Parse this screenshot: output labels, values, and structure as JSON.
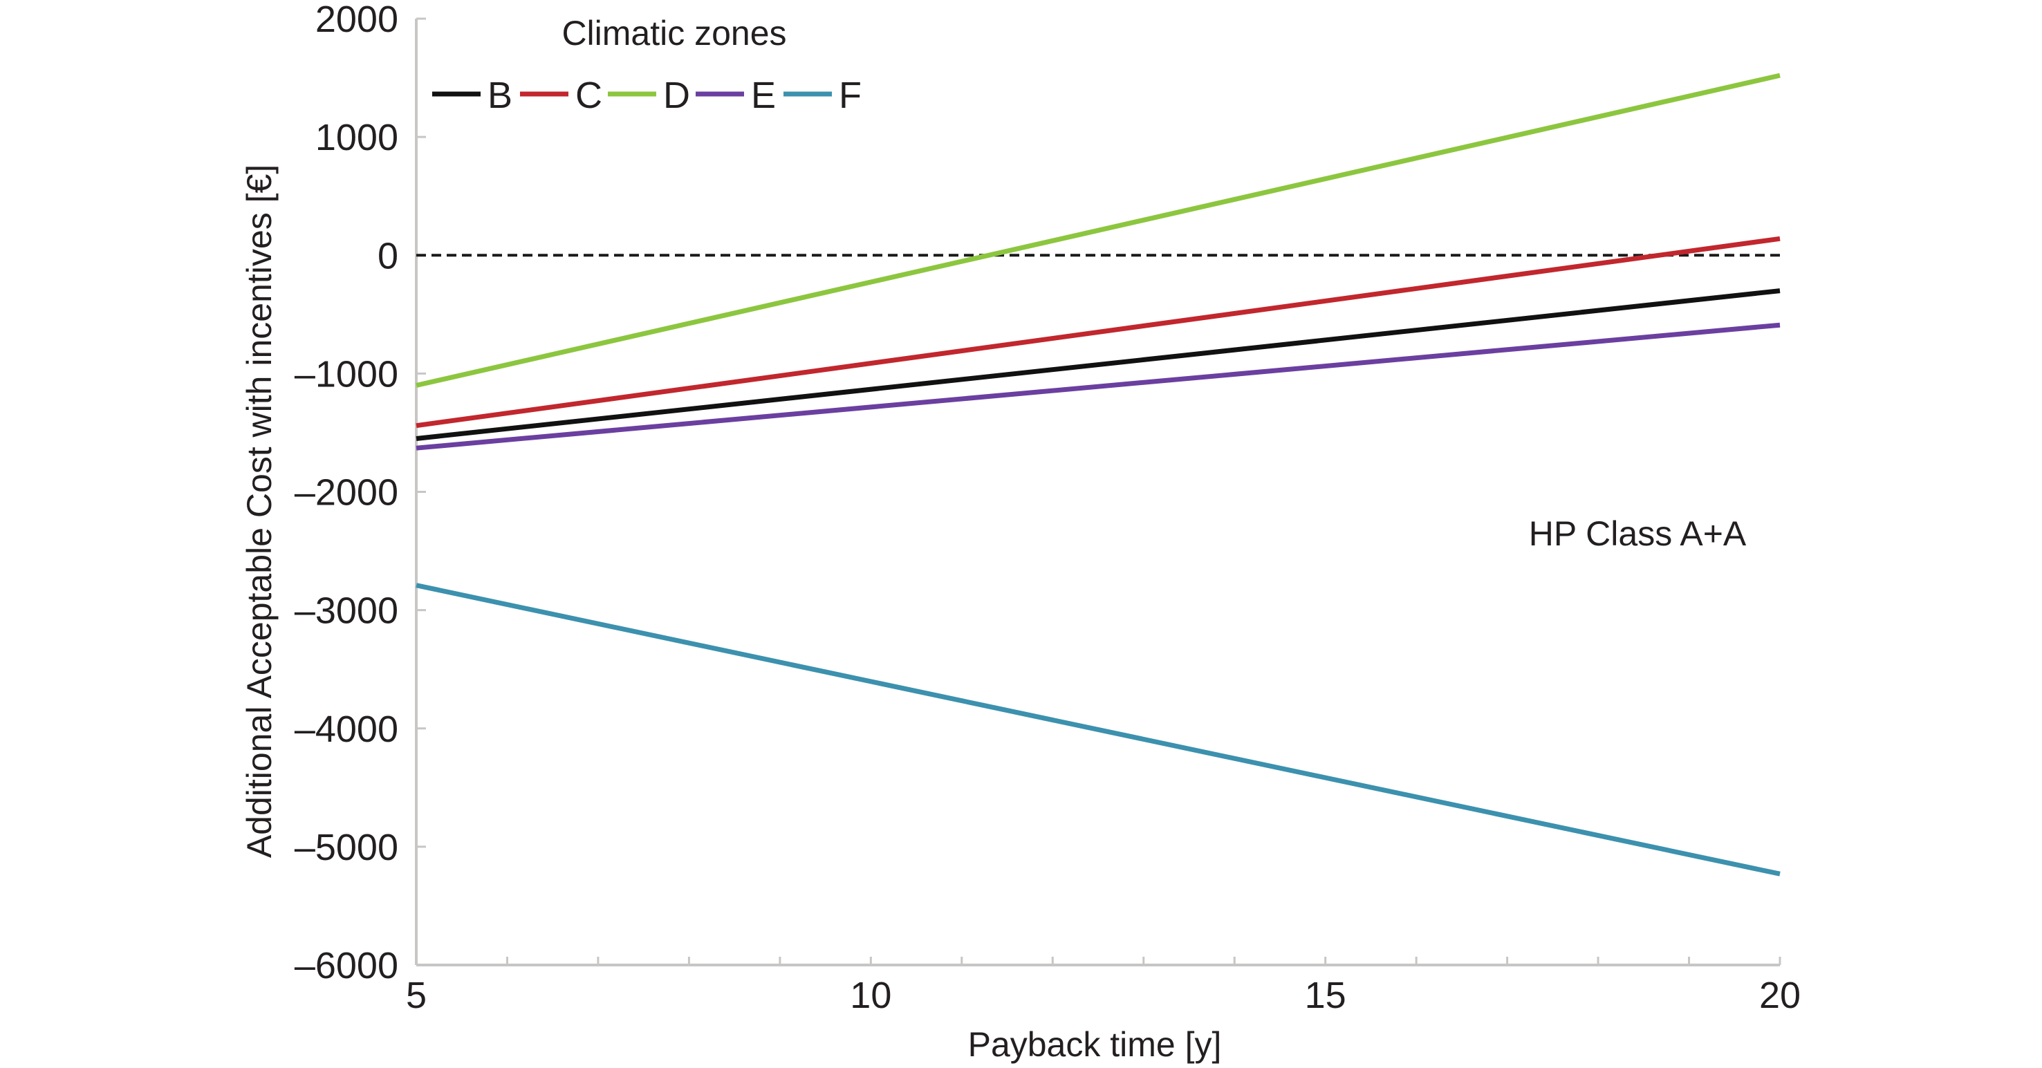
{
  "chart_data": {
    "type": "line",
    "title": "",
    "xlabel": "Payback time [y]",
    "ylabel": "Additional Acceptable Cost with incentives [€]",
    "xlim": [
      5,
      20
    ],
    "ylim": [
      -6000,
      2000
    ],
    "x_ticks": [
      5,
      10,
      15,
      20
    ],
    "x_minor_ticks": [
      6,
      7,
      8,
      9,
      11,
      12,
      13,
      14,
      16,
      17,
      18,
      19
    ],
    "y_ticks": [
      2000,
      1000,
      0,
      -1000,
      -2000,
      -3000,
      -4000,
      -5000,
      -6000
    ],
    "x_tick_labels": [
      "5",
      "10",
      "15",
      "20"
    ],
    "y_tick_labels": [
      "2000",
      "1000",
      "0",
      "–1000",
      "–2000",
      "–3000",
      "–4000",
      "–5000",
      "–6000"
    ],
    "grid": false,
    "legend": {
      "title": "Climatic zones",
      "placement": "top-left",
      "orientation": "horizontal"
    },
    "reference_line": {
      "y": 0,
      "style": "dashed",
      "color": "#1a1a1a"
    },
    "annotations": [
      {
        "text": "HP Class A+A",
        "x": 18.2,
        "y": -2350
      }
    ],
    "series": [
      {
        "name": "B",
        "color": "#111111",
        "x": [
          5,
          20
        ],
        "values": [
          -1550,
          -300
        ]
      },
      {
        "name": "C",
        "color": "#c1272d",
        "x": [
          5,
          20
        ],
        "values": [
          -1440,
          140
        ]
      },
      {
        "name": "D",
        "color": "#8cc63f",
        "x": [
          5,
          20
        ],
        "values": [
          -1100,
          1520
        ]
      },
      {
        "name": "E",
        "color": "#6b3fa0",
        "x": [
          5,
          20
        ],
        "values": [
          -1630,
          -590
        ]
      },
      {
        "name": "F",
        "color": "#3c91ae",
        "x": [
          5,
          20
        ],
        "values": [
          -2790,
          -5230
        ]
      }
    ]
  }
}
